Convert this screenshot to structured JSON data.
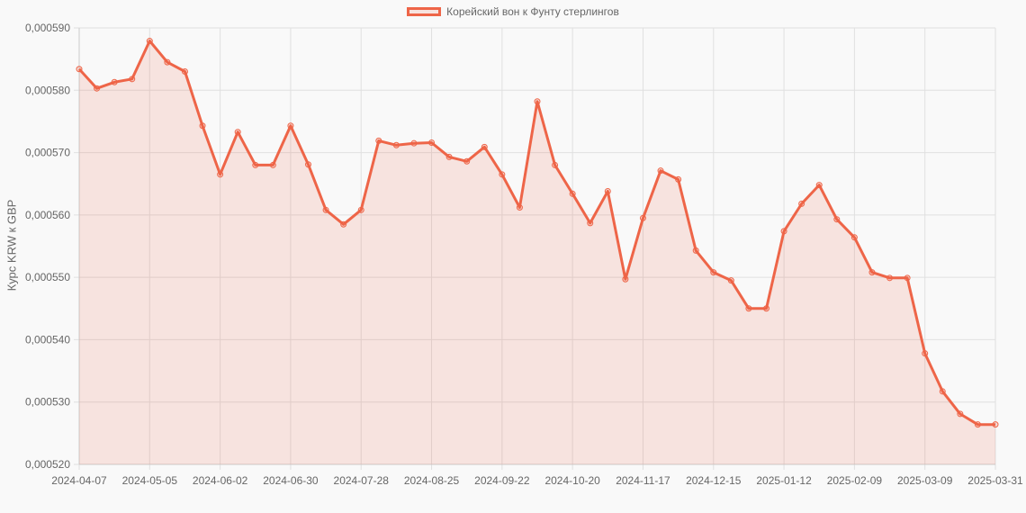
{
  "chart_data": {
    "type": "line",
    "title": "",
    "legend": [
      "Корейский вон к Фунту стерлингов"
    ],
    "legend_position": "top",
    "xlabel": "",
    "ylabel": "Курс KRW к GBP",
    "ylim": [
      0.00052,
      0.00059
    ],
    "y_ticks": [
      "0,000520",
      "0,000530",
      "0,000540",
      "0,000550",
      "0,000560",
      "0,000570",
      "0,000580",
      "0,000590"
    ],
    "x_tick_labels": [
      "2024-04-07",
      "2024-05-05",
      "2024-06-02",
      "2024-06-30",
      "2024-07-28",
      "2024-08-25",
      "2024-09-22",
      "2024-10-20",
      "2024-11-17",
      "2024-12-15",
      "2025-01-12",
      "2025-02-09",
      "2025-03-09",
      "2025-03-31"
    ],
    "grid": true,
    "fill": true,
    "colors": {
      "line": "#ee6548",
      "fill": "rgba(238,101,72,0.15)",
      "grid": "#e0e0e0"
    },
    "series": [
      {
        "name": "Корейский вон к Фунту стерлингов",
        "values": [
          0.0005834,
          0.0005803,
          0.0005813,
          0.0005818,
          0.0005879,
          0.0005845,
          0.000583,
          0.0005743,
          0.0005665,
          0.0005733,
          0.000568,
          0.000568,
          0.0005743,
          0.0005681,
          0.0005608,
          0.0005585,
          0.0005608,
          0.0005719,
          0.0005712,
          0.0005715,
          0.0005716,
          0.0005693,
          0.0005686,
          0.0005709,
          0.0005665,
          0.0005612,
          0.0005782,
          0.000568,
          0.0005634,
          0.0005587,
          0.0005638,
          0.0005497,
          0.0005595,
          0.0005671,
          0.0005657,
          0.0005543,
          0.0005508,
          0.0005495,
          0.000545,
          0.000545,
          0.0005574,
          0.0005618,
          0.0005648,
          0.0005593,
          0.0005564,
          0.0005508,
          0.0005499,
          0.0005499,
          0.0005378,
          0.0005317,
          0.0005281,
          0.0005264,
          0.0005264
        ]
      }
    ]
  }
}
